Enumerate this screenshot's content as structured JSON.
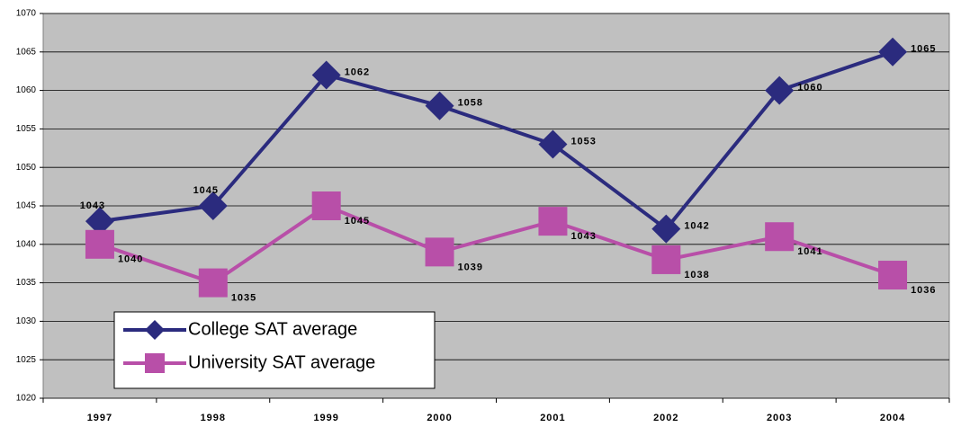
{
  "chart_data": {
    "type": "line",
    "categories": [
      "1997",
      "1998",
      "1999",
      "2000",
      "2001",
      "2002",
      "2003",
      "2004"
    ],
    "series": [
      {
        "name": "College SAT average",
        "color": "#2b2b7e",
        "marker": "diamond",
        "values": [
          1043,
          1045,
          1062,
          1058,
          1053,
          1042,
          1060,
          1065
        ]
      },
      {
        "name": "University SAT average",
        "color": "#b84fa8",
        "marker": "square",
        "values": [
          1040,
          1035,
          1045,
          1039,
          1043,
          1038,
          1041,
          1036
        ]
      }
    ],
    "ylim": [
      1020,
      1070
    ],
    "yticks": [
      1020,
      1025,
      1030,
      1035,
      1040,
      1045,
      1050,
      1055,
      1060,
      1065,
      1070
    ],
    "grid": true,
    "legend": "bottom-left"
  }
}
